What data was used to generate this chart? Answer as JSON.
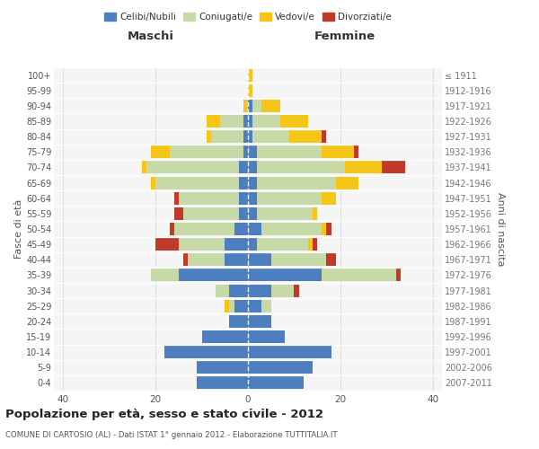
{
  "age_groups": [
    "0-4",
    "5-9",
    "10-14",
    "15-19",
    "20-24",
    "25-29",
    "30-34",
    "35-39",
    "40-44",
    "45-49",
    "50-54",
    "55-59",
    "60-64",
    "65-69",
    "70-74",
    "75-79",
    "80-84",
    "85-89",
    "90-94",
    "95-99",
    "100+"
  ],
  "birth_years": [
    "2007-2011",
    "2002-2006",
    "1997-2001",
    "1992-1996",
    "1987-1991",
    "1982-1986",
    "1977-1981",
    "1972-1976",
    "1967-1971",
    "1962-1966",
    "1957-1961",
    "1952-1956",
    "1947-1951",
    "1942-1946",
    "1937-1941",
    "1932-1936",
    "1927-1931",
    "1922-1926",
    "1917-1921",
    "1912-1916",
    "≤ 1911"
  ],
  "males": {
    "celibi": [
      11,
      11,
      18,
      10,
      4,
      3,
      4,
      15,
      5,
      5,
      3,
      2,
      2,
      2,
      2,
      1,
      1,
      1,
      0,
      0,
      0
    ],
    "coniugati": [
      0,
      0,
      0,
      0,
      0,
      1,
      3,
      6,
      8,
      10,
      13,
      12,
      13,
      18,
      20,
      16,
      7,
      5,
      0,
      0,
      0
    ],
    "vedovi": [
      0,
      0,
      0,
      0,
      0,
      1,
      0,
      0,
      0,
      0,
      0,
      0,
      0,
      1,
      1,
      4,
      1,
      3,
      1,
      0,
      0
    ],
    "divorziati": [
      0,
      0,
      0,
      0,
      0,
      0,
      0,
      0,
      1,
      5,
      1,
      2,
      1,
      0,
      0,
      0,
      0,
      0,
      0,
      0,
      0
    ]
  },
  "females": {
    "nubili": [
      12,
      14,
      18,
      8,
      5,
      3,
      5,
      16,
      5,
      2,
      3,
      2,
      2,
      2,
      2,
      2,
      1,
      1,
      1,
      0,
      0
    ],
    "coniugate": [
      0,
      0,
      0,
      0,
      0,
      2,
      5,
      16,
      12,
      11,
      13,
      12,
      14,
      17,
      19,
      14,
      8,
      6,
      2,
      0,
      0
    ],
    "vedove": [
      0,
      0,
      0,
      0,
      0,
      0,
      0,
      0,
      0,
      1,
      1,
      1,
      3,
      5,
      8,
      7,
      7,
      6,
      4,
      1,
      1
    ],
    "divorziate": [
      0,
      0,
      0,
      0,
      0,
      0,
      1,
      1,
      2,
      1,
      1,
      0,
      0,
      0,
      5,
      1,
      1,
      0,
      0,
      0,
      0
    ]
  },
  "colors": {
    "celibi_nubili": "#4d7ebf",
    "coniugati": "#c8d9a8",
    "vedovi": "#f5c518",
    "divorziati": "#c0392b"
  },
  "xlim": 42,
  "title": "Popolazione per età, sesso e stato civile - 2012",
  "subtitle": "COMUNE DI CARTOSIO (AL) - Dati ISTAT 1° gennaio 2012 - Elaborazione TUTTITALIA.IT",
  "xlabel_left": "Maschi",
  "xlabel_right": "Femmine",
  "ylabel_left": "Fasce di età",
  "ylabel_right": "Anni di nascita",
  "bg_color": "#f5f5f5",
  "grid_color": "#dddddd"
}
